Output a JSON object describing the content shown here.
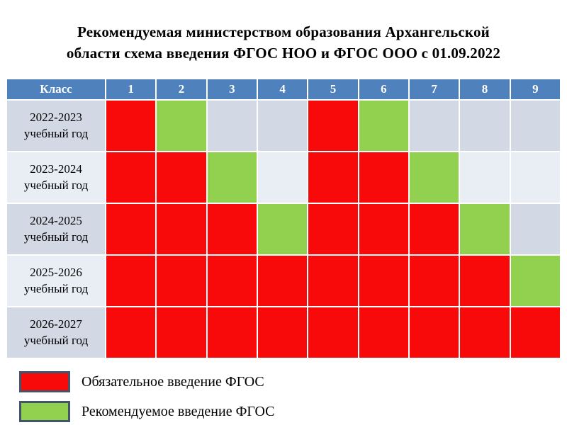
{
  "title": {
    "line1": "Рекомендуемая министерством образования Архангельской",
    "line2": "области схема введения ФГОС НОО и ФГОС ООО с 01.09.2022"
  },
  "colors": {
    "header_bg": "#4F81BD",
    "header_text": "#FFFFFF",
    "obligatory": "#F90A0A",
    "recommended": "#92D050",
    "band_dark": "#D2D8E4",
    "band_light": "#E9EDF4",
    "swatch_border": "#44546A"
  },
  "table": {
    "header": [
      "Класс",
      "1",
      "2",
      "3",
      "4",
      "5",
      "6",
      "7",
      "8",
      "9"
    ],
    "rows": [
      {
        "label_line1": "2022-2023",
        "label_line2": "учебный год",
        "cells": [
          "obligatory",
          "recommended",
          null,
          null,
          "obligatory",
          "recommended",
          null,
          null,
          null
        ]
      },
      {
        "label_line1": "2023-2024",
        "label_line2": "учебный год",
        "cells": [
          "obligatory",
          "obligatory",
          "recommended",
          null,
          "obligatory",
          "obligatory",
          "recommended",
          null,
          null
        ]
      },
      {
        "label_line1": "2024-2025",
        "label_line2": "учебный год",
        "cells": [
          "obligatory",
          "obligatory",
          "obligatory",
          "recommended",
          "obligatory",
          "obligatory",
          "obligatory",
          "recommended",
          null
        ]
      },
      {
        "label_line1": "2025-2026",
        "label_line2": "учебный год",
        "cells": [
          "obligatory",
          "obligatory",
          "obligatory",
          "obligatory",
          "obligatory",
          "obligatory",
          "obligatory",
          "obligatory",
          "recommended"
        ]
      },
      {
        "label_line1": "2026-2027",
        "label_line2": "учебный год",
        "cells": [
          "obligatory",
          "obligatory",
          "obligatory",
          "obligatory",
          "obligatory",
          "obligatory",
          "obligatory",
          "obligatory",
          "obligatory"
        ]
      }
    ]
  },
  "legend": [
    {
      "state": "obligatory",
      "label": "Обязательное введение ФГОС"
    },
    {
      "state": "recommended",
      "label": "Рекомендуемое введение ФГОС"
    }
  ],
  "chart_data": {
    "type": "heatmap",
    "title": "Рекомендуемая министерством образования Архангельской области схема введения ФГОС НОО и ФГОС ООО с 01.09.2022",
    "xlabel": "Класс",
    "x_categories": [
      "1",
      "2",
      "3",
      "4",
      "5",
      "6",
      "7",
      "8",
      "9"
    ],
    "y_categories": [
      "2022-2023 учебный год",
      "2023-2024 учебный год",
      "2024-2025 учебный год",
      "2025-2026 учебный год",
      "2026-2027 учебный год"
    ],
    "values": [
      [
        "obligatory",
        "recommended",
        null,
        null,
        "obligatory",
        "recommended",
        null,
        null,
        null
      ],
      [
        "obligatory",
        "obligatory",
        "recommended",
        null,
        "obligatory",
        "obligatory",
        "recommended",
        null,
        null
      ],
      [
        "obligatory",
        "obligatory",
        "obligatory",
        "recommended",
        "obligatory",
        "obligatory",
        "obligatory",
        "recommended",
        null
      ],
      [
        "obligatory",
        "obligatory",
        "obligatory",
        "obligatory",
        "obligatory",
        "obligatory",
        "obligatory",
        "obligatory",
        "recommended"
      ],
      [
        "obligatory",
        "obligatory",
        "obligatory",
        "obligatory",
        "obligatory",
        "obligatory",
        "obligatory",
        "obligatory",
        "obligatory"
      ]
    ],
    "value_colors": {
      "obligatory": "#F90A0A",
      "recommended": "#92D050"
    },
    "legend_entries": [
      "Обязательное введение ФГОС",
      "Рекомендуемое введение ФГОС"
    ],
    "legend_position": "bottom-left",
    "grid": false
  }
}
